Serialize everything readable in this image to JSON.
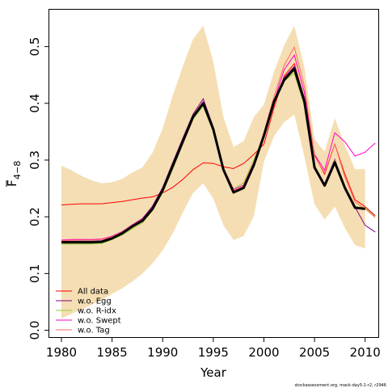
{
  "chart_data": {
    "type": "line",
    "xlabel": "Year",
    "ylabel_main": "F",
    "ylabel_sub": "4−8",
    "footnote": "stockassessment.org, mack-day5-1-r2, r2946",
    "xlim": [
      1978.8,
      2011.3
    ],
    "ylim": [
      -0.012,
      0.565
    ],
    "x_ticks": [
      1980,
      1985,
      1990,
      1995,
      2000,
      2005,
      2010
    ],
    "y_ticks": [
      0.0,
      0.1,
      0.2,
      0.3,
      0.4,
      0.5
    ],
    "y_tick_labels": [
      "0.0",
      "0.1",
      "0.2",
      "0.3",
      "0.4",
      "0.5"
    ],
    "colors": {
      "band": "#f5deb3",
      "base": "#000000",
      "all_data": "#ff0000",
      "wo_egg": "#800080",
      "wo_ridx": "#9acd32",
      "wo_swept": "#ff00cc",
      "wo_tag": "#ff6a5a"
    },
    "band": {
      "x": [
        1980,
        1981,
        1982,
        1983,
        1984,
        1985,
        1986,
        1987,
        1988,
        1989,
        1990,
        1991,
        1992,
        1993,
        1994,
        1995,
        1996,
        1997,
        1998,
        1999,
        2000,
        2001,
        2002,
        2003,
        2004,
        2005,
        2006,
        2007,
        2008,
        2009,
        2010
      ],
      "upper": [
        0.29,
        0.282,
        0.272,
        0.264,
        0.259,
        0.261,
        0.267,
        0.278,
        0.287,
        0.313,
        0.356,
        0.414,
        0.466,
        0.513,
        0.537,
        0.473,
        0.376,
        0.323,
        0.333,
        0.376,
        0.398,
        0.456,
        0.502,
        0.537,
        0.463,
        0.337,
        0.315,
        0.374,
        0.326,
        0.284,
        0.284
      ],
      "lower": [
        0.021,
        0.029,
        0.037,
        0.045,
        0.054,
        0.064,
        0.074,
        0.086,
        0.1,
        0.118,
        0.141,
        0.171,
        0.208,
        0.242,
        0.259,
        0.232,
        0.185,
        0.159,
        0.166,
        0.201,
        0.297,
        0.342,
        0.367,
        0.38,
        0.306,
        0.222,
        0.195,
        0.218,
        0.18,
        0.15,
        0.144
      ]
    },
    "series": [
      {
        "name": "All data",
        "color_key": "all_data",
        "x": [
          1980,
          1981,
          1982,
          1983,
          1984,
          1985,
          1986,
          1987,
          1988,
          1989,
          1990,
          1991,
          1992,
          1993,
          1994,
          1995,
          1996,
          1997,
          1998,
          1999,
          2000,
          2001,
          2002,
          2003,
          2004,
          2005,
          2006,
          2007,
          2008,
          2009,
          2010,
          2011
        ],
        "y": [
          0.221,
          0.222,
          0.223,
          0.223,
          0.223,
          0.225,
          0.227,
          0.23,
          0.233,
          0.235,
          0.242,
          0.252,
          0.266,
          0.283,
          0.295,
          0.294,
          0.288,
          0.285,
          0.294,
          0.31,
          0.328,
          0.392,
          0.448,
          0.47,
          0.408,
          0.309,
          0.275,
          0.328,
          0.275,
          0.23,
          0.218,
          0.202
        ]
      },
      {
        "name": "w.o. Egg",
        "color_key": "wo_egg",
        "x": [
          1980,
          1981,
          1982,
          1983,
          1984,
          1985,
          1986,
          1987,
          1988,
          1989,
          1990,
          1991,
          1992,
          1993,
          1994,
          1995,
          1996,
          1997,
          1998,
          1999,
          2000,
          2001,
          2002,
          2003,
          2004,
          2005,
          2006,
          2007,
          2008,
          2009,
          2010,
          2011
        ],
        "y": [
          0.157,
          0.157,
          0.157,
          0.157,
          0.158,
          0.164,
          0.173,
          0.186,
          0.197,
          0.219,
          0.252,
          0.296,
          0.339,
          0.381,
          0.408,
          0.358,
          0.284,
          0.245,
          0.253,
          0.293,
          0.347,
          0.406,
          0.445,
          0.465,
          0.409,
          0.288,
          0.258,
          0.301,
          0.248,
          0.217,
          0.185,
          0.173
        ]
      },
      {
        "name": "w.o. R-idx",
        "color_key": "wo_ridx",
        "x": [
          1980,
          1981,
          1982,
          1983,
          1984,
          1985,
          1986,
          1987,
          1988,
          1989,
          1990,
          1991,
          1992,
          1993,
          1994,
          1995,
          1996,
          1997,
          1998,
          1999,
          2000,
          2001,
          2002,
          2003,
          2004,
          2005,
          2006,
          2007,
          2008,
          2009,
          2010,
          2011
        ],
        "y": [
          0.152,
          0.152,
          0.152,
          0.152,
          0.153,
          0.16,
          0.168,
          0.179,
          0.189,
          0.211,
          0.243,
          0.284,
          0.329,
          0.372,
          0.395,
          0.35,
          0.284,
          0.249,
          0.26,
          0.3,
          0.343,
          0.401,
          0.439,
          0.453,
          0.395,
          0.286,
          0.256,
          0.299,
          0.251,
          0.218,
          0.216,
          0.2
        ]
      },
      {
        "name": "w.o. Swept",
        "color_key": "wo_swept",
        "x": [
          1980,
          1981,
          1982,
          1983,
          1984,
          1985,
          1986,
          1987,
          1988,
          1989,
          1990,
          1991,
          1992,
          1993,
          1994,
          1995,
          1996,
          1997,
          1998,
          1999,
          2000,
          2001,
          2002,
          2003,
          2004,
          2005,
          2006,
          2007,
          2008,
          2009,
          2010,
          2011
        ],
        "y": [
          0.159,
          0.16,
          0.16,
          0.16,
          0.161,
          0.166,
          0.174,
          0.186,
          0.196,
          0.217,
          0.25,
          0.293,
          0.336,
          0.378,
          0.403,
          0.358,
          0.286,
          0.248,
          0.256,
          0.296,
          0.346,
          0.404,
          0.459,
          0.485,
          0.419,
          0.31,
          0.282,
          0.348,
          0.332,
          0.307,
          0.314,
          0.33
        ]
      },
      {
        "name": "w.o. Tag",
        "color_key": "wo_tag",
        "x": [
          1980,
          1981,
          1982,
          1983,
          1984,
          1985,
          1986,
          1987,
          1988,
          1989,
          1990,
          1991,
          1992,
          1993,
          1994,
          1995,
          1996,
          1997,
          1998,
          1999,
          2000,
          2001,
          2002,
          2003,
          2004,
          2005,
          2006,
          2007,
          2008,
          2009,
          2010,
          2011
        ],
        "y": [
          0.158,
          0.159,
          0.159,
          0.159,
          0.16,
          0.165,
          0.173,
          0.185,
          0.195,
          0.216,
          0.249,
          0.291,
          0.334,
          0.375,
          0.4,
          0.356,
          0.285,
          0.246,
          0.254,
          0.294,
          0.349,
          0.412,
          0.467,
          0.499,
          0.43,
          0.307,
          0.277,
          0.328,
          0.27,
          0.226,
          0.214,
          0.199
        ]
      }
    ],
    "base_line": {
      "x": [
        1980,
        1981,
        1982,
        1983,
        1984,
        1985,
        1986,
        1987,
        1988,
        1989,
        1990,
        1991,
        1992,
        1993,
        1994,
        1995,
        1996,
        1997,
        1998,
        1999,
        2000,
        2001,
        2002,
        2003,
        2004,
        2005,
        2006,
        2007,
        2008,
        2009,
        2010
      ],
      "y": [
        0.155,
        0.155,
        0.155,
        0.155,
        0.156,
        0.162,
        0.171,
        0.183,
        0.193,
        0.214,
        0.247,
        0.29,
        0.333,
        0.376,
        0.4,
        0.354,
        0.283,
        0.243,
        0.251,
        0.291,
        0.343,
        0.403,
        0.441,
        0.461,
        0.403,
        0.287,
        0.255,
        0.296,
        0.251,
        0.216,
        0.214
      ]
    },
    "legend_position": "bottom-left"
  }
}
